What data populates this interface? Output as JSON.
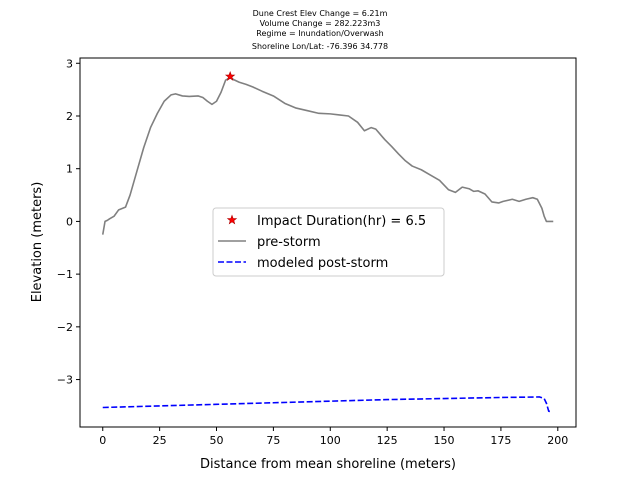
{
  "chart_data": {
    "type": "line",
    "title_lines": [
      "Dune Crest Elev Change = 6.21m",
      "Volume Change = 282.223m3",
      "Regime = Inundation/Overwash",
      "Shoreline Lon/Lat: -76.396 34.778"
    ],
    "xlabel": "Distance from mean shoreline (meters)",
    "ylabel": "Elevation (meters)",
    "xlim": [
      -10,
      208
    ],
    "ylim": [
      -3.9,
      3.1
    ],
    "xticks": [
      0,
      25,
      50,
      75,
      100,
      125,
      150,
      175,
      200
    ],
    "xtick_labels": [
      "0",
      "25",
      "50",
      "75",
      "100",
      "125",
      "150",
      "175",
      "200"
    ],
    "yticks": [
      -3,
      -2,
      -1,
      0,
      1,
      2,
      3
    ],
    "ytick_labels": [
      "−3",
      "−2",
      "−1",
      "0",
      "1",
      "2",
      "3"
    ],
    "grid": false,
    "legend_position": "center",
    "series": [
      {
        "name": "Impact Duration(hr) = 6.5",
        "kind": "marker",
        "color": "#ff0000",
        "x": [
          56
        ],
        "y": [
          2.75
        ]
      },
      {
        "name": "pre-storm",
        "kind": "line",
        "color": "#808080",
        "x": [
          0,
          1,
          2,
          3,
          5,
          7,
          10,
          12,
          15,
          18,
          21,
          24,
          27,
          30,
          32,
          35,
          38,
          42,
          44,
          46,
          48,
          50,
          52,
          54,
          56,
          58,
          60,
          63,
          66,
          70,
          75,
          80,
          85,
          90,
          95,
          100,
          104,
          108,
          112,
          115,
          118,
          120,
          122,
          124,
          127,
          130,
          133,
          136,
          140,
          144,
          148,
          152,
          155,
          158,
          161,
          163,
          165,
          168,
          171,
          174,
          176,
          180,
          183,
          186,
          189,
          191,
          193,
          194,
          195,
          196,
          197,
          198
        ],
        "y": [
          -0.25,
          0.0,
          0.02,
          0.05,
          0.1,
          0.22,
          0.27,
          0.5,
          0.95,
          1.4,
          1.78,
          2.05,
          2.28,
          2.4,
          2.42,
          2.38,
          2.37,
          2.38,
          2.35,
          2.28,
          2.22,
          2.28,
          2.45,
          2.68,
          2.73,
          2.68,
          2.64,
          2.6,
          2.55,
          2.47,
          2.38,
          2.24,
          2.15,
          2.1,
          2.05,
          2.04,
          2.02,
          2.0,
          1.88,
          1.72,
          1.78,
          1.75,
          1.65,
          1.55,
          1.42,
          1.28,
          1.15,
          1.05,
          0.98,
          0.88,
          0.78,
          0.6,
          0.55,
          0.65,
          0.62,
          0.57,
          0.58,
          0.52,
          0.37,
          0.35,
          0.38,
          0.42,
          0.38,
          0.42,
          0.45,
          0.42,
          0.25,
          0.1,
          0.0,
          0.0,
          0.0,
          0.0
        ]
      },
      {
        "name": "modeled post-storm",
        "kind": "dashed-line",
        "color": "#0000ff",
        "x": [
          0,
          25,
          50,
          75,
          100,
          125,
          150,
          175,
          192,
          194,
          195,
          196,
          197
        ],
        "y": [
          -3.53,
          -3.5,
          -3.47,
          -3.44,
          -3.41,
          -3.38,
          -3.36,
          -3.34,
          -3.33,
          -3.36,
          -3.45,
          -3.6,
          -3.61
        ]
      }
    ]
  }
}
